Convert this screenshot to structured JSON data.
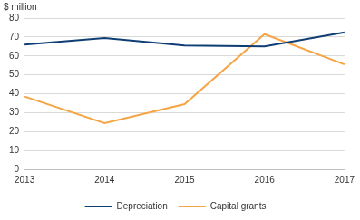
{
  "chart_data": {
    "type": "line",
    "y_label": "$ million",
    "categories": [
      "2013",
      "2014",
      "2015",
      "2016",
      "2017"
    ],
    "series": [
      {
        "name": "Depreciation",
        "color": "#0f3e75",
        "marker": "none",
        "line_style": "solid",
        "values": [
          66,
          69.5,
          65.5,
          65,
          72.5
        ]
      },
      {
        "name": "Capital grants",
        "color": "#f5a545",
        "marker": "none",
        "line_style": "solid",
        "values": [
          38.5,
          24.5,
          34.5,
          71.5,
          55.5
        ]
      }
    ],
    "ylim": [
      0,
      80
    ],
    "yticks": [
      0,
      10,
      20,
      30,
      40,
      50,
      60,
      70,
      80
    ],
    "grid": true,
    "legend": "bottom"
  }
}
